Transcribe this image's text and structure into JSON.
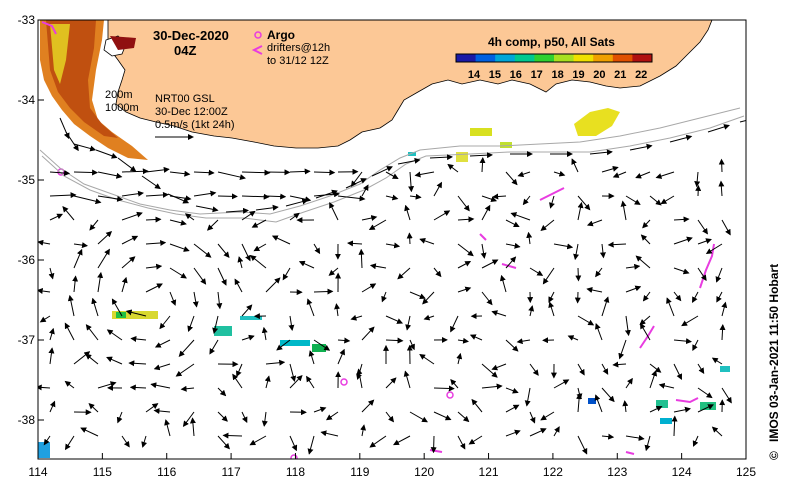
{
  "map": {
    "date": "30-Dec-2020",
    "time": "04Z",
    "argo_label": "Argo",
    "drifters_line1": "drifters@12h",
    "drifters_line2": "to 31/12 12Z",
    "isobath_200": "200m",
    "isobath_1000": "1000m",
    "nrt_line1": "NRT00 GSL",
    "nrt_line2": "30-Dec 12:00Z",
    "scale_label": "0.5m/s (1kt 24h)",
    "colorbar_title": "4h comp, p50, All Sats",
    "colorbar_ticks": [
      "14",
      "15",
      "16",
      "17",
      "18",
      "19",
      "20",
      "21",
      "22"
    ],
    "colorbar_colors": [
      "#1a1aa6",
      "#0060e0",
      "#00a6d8",
      "#00c890",
      "#30d030",
      "#a8e020",
      "#f0e000",
      "#f0a000",
      "#e05000",
      "#b01010"
    ],
    "credit": "IMOS 03-Jan-2021 11:50 Hobart",
    "copyright_symbol": "©",
    "lon_ticks": [
      "114",
      "115",
      "116",
      "117",
      "118",
      "119",
      "120",
      "121",
      "122",
      "123",
      "124",
      "125"
    ],
    "lat_ticks": [
      "-33",
      "-34",
      "-35",
      "-36",
      "-37",
      "-38"
    ],
    "colors": {
      "land": "#fcc896",
      "argo": "#e83ce0",
      "drifter": "#e83ce0",
      "isobath": "#a8a8a8"
    }
  }
}
